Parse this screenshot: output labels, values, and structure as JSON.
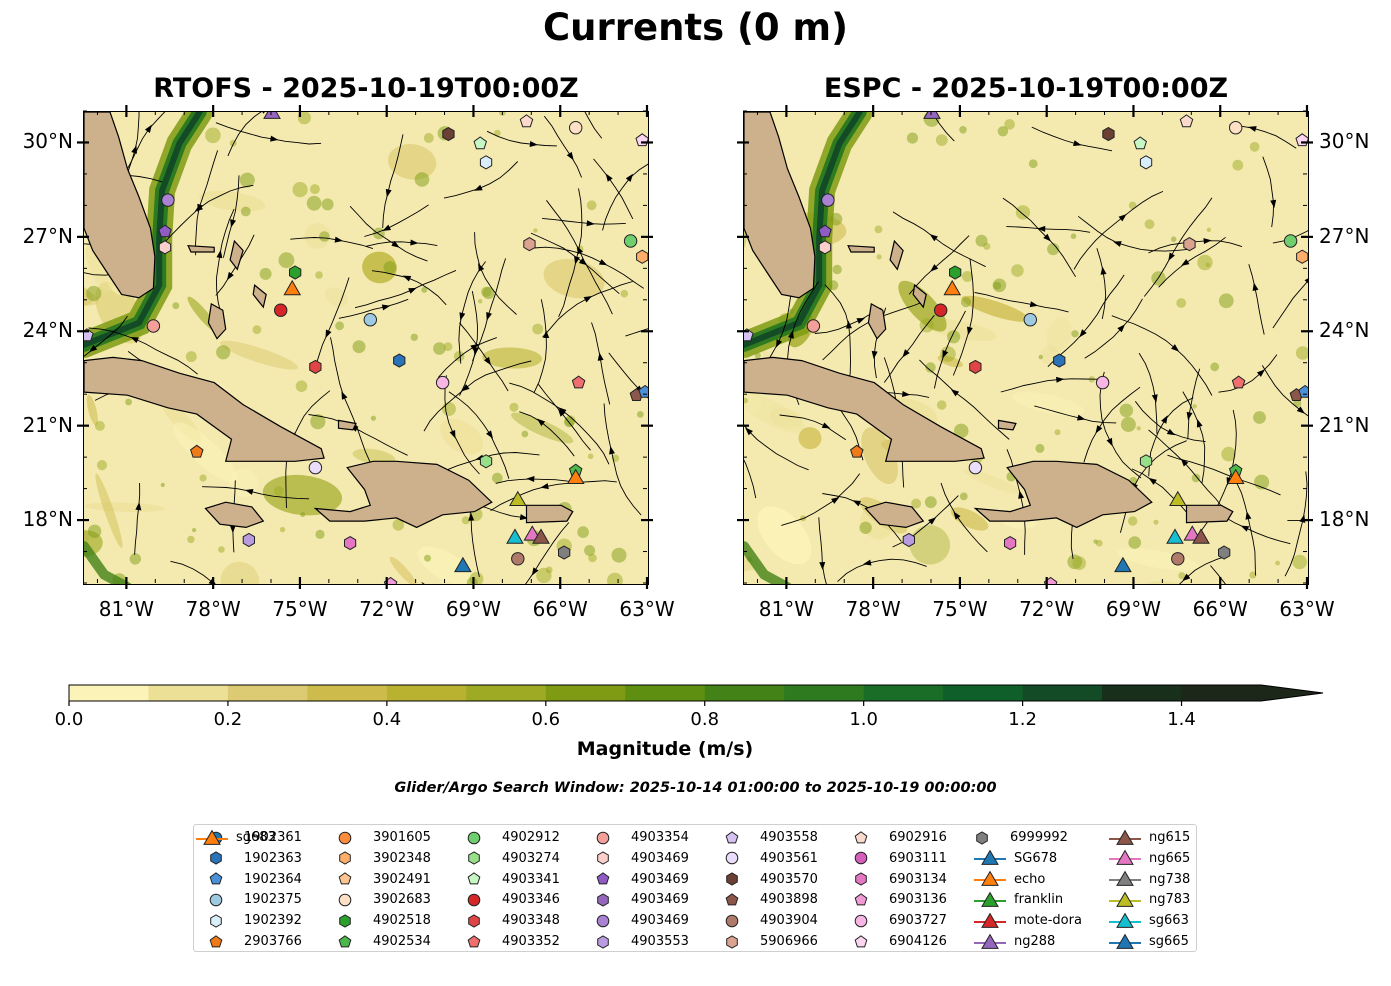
{
  "title": "Currents (0 m)",
  "panels": [
    {
      "id": "rtofs",
      "title": "RTOFS - 2025-10-19T00:00Z",
      "lat_labels_side": "left"
    },
    {
      "id": "espc",
      "title": "ESPC - 2025-10-19T00:00Z",
      "lat_labels_side": "right"
    }
  ],
  "map_extent": {
    "lon": [
      -82.5,
      -63.0
    ],
    "lat": [
      16.0,
      31.0
    ]
  },
  "lon_ticks": [
    -81,
    -78,
    -75,
    -72,
    -69,
    -66,
    -63
  ],
  "lon_tick_labels": [
    "81°W",
    "78°W",
    "75°W",
    "72°W",
    "69°W",
    "66°W",
    "63°W"
  ],
  "lat_ticks": [
    18,
    21,
    24,
    27,
    30
  ],
  "lat_tick_labels": [
    "18°N",
    "21°N",
    "24°N",
    "27°N",
    "30°N"
  ],
  "colorbar": {
    "label": "Magnitude (m/s)",
    "range": [
      0.0,
      1.5
    ],
    "extend": "max",
    "ticks": [
      0.0,
      0.2,
      0.4,
      0.6,
      0.8,
      1.0,
      1.2,
      1.4
    ],
    "tick_labels": [
      "0.0",
      "0.2",
      "0.4",
      "0.6",
      "0.8",
      "1.0",
      "1.2",
      "1.4"
    ],
    "colors": [
      "#fbf3b8",
      "#ecdf96",
      "#ddcb73",
      "#cdbb4c",
      "#b8b230",
      "#9ea924",
      "#7e9b13",
      "#5f8f10",
      "#438216",
      "#2e7a1f",
      "#1a6d27",
      "#0f5f2a",
      "#124b26",
      "#182f1c",
      "#1c271a"
    ]
  },
  "search_window": "Glider/Argo Search Window: 2025-10-14 01:00:00 to 2025-10-19 00:00:00",
  "legend": [
    {
      "label": "1902361",
      "marker": "circle",
      "color": "#1f77b4"
    },
    {
      "label": "1902363",
      "marker": "hexagon",
      "color": "#2a73b8"
    },
    {
      "label": "1902364",
      "marker": "pentagon",
      "color": "#4a90d9"
    },
    {
      "label": "1902375",
      "marker": "circle",
      "color": "#9ecae1"
    },
    {
      "label": "1902392",
      "marker": "hexagon",
      "color": "#d8eefa"
    },
    {
      "label": "2903766",
      "marker": "pentagon",
      "color": "#f07a1a"
    },
    {
      "label": "3901605",
      "marker": "circle",
      "color": "#fd8d3c"
    },
    {
      "label": "3902348",
      "marker": "hexagon",
      "color": "#fdae6b"
    },
    {
      "label": "3902491",
      "marker": "pentagon",
      "color": "#fdc58f"
    },
    {
      "label": "3902683",
      "marker": "circle",
      "color": "#fde0c5"
    },
    {
      "label": "4902518",
      "marker": "hexagon",
      "color": "#2ca02c"
    },
    {
      "label": "4902534",
      "marker": "pentagon",
      "color": "#4cb84c"
    },
    {
      "label": "4902912",
      "marker": "circle",
      "color": "#6fcf6f"
    },
    {
      "label": "4903274",
      "marker": "hexagon",
      "color": "#98df8a"
    },
    {
      "label": "4903341",
      "marker": "pentagon",
      "color": "#c7f7c4"
    },
    {
      "label": "4903346",
      "marker": "circle",
      "color": "#d62728"
    },
    {
      "label": "4903348",
      "marker": "hexagon",
      "color": "#e04545"
    },
    {
      "label": "4903352",
      "marker": "pentagon",
      "color": "#ef6e6e"
    },
    {
      "label": "4903354",
      "marker": "circle",
      "color": "#f4a09a"
    },
    {
      "label": "4903469",
      "marker": "hexagon",
      "color": "#fbd0cc"
    },
    {
      "label": "4903469",
      "marker": "pentagon",
      "color": "#8e5cc4"
    },
    {
      "label": "4903469",
      "marker": "hexagon",
      "color": "#9467bd"
    },
    {
      "label": "4903469",
      "marker": "circle",
      "color": "#a982d4"
    },
    {
      "label": "4903553",
      "marker": "hexagon",
      "color": "#b99be0"
    },
    {
      "label": "4903558",
      "marker": "pentagon",
      "color": "#d6c2f2"
    },
    {
      "label": "4903561",
      "marker": "circle",
      "color": "#eadcfb"
    },
    {
      "label": "4903570",
      "marker": "hexagon",
      "color": "#6b3f33"
    },
    {
      "label": "4903898",
      "marker": "pentagon",
      "color": "#8c564b"
    },
    {
      "label": "4903904",
      "marker": "circle",
      "color": "#b07a6b"
    },
    {
      "label": "5906966",
      "marker": "hexagon",
      "color": "#dba290"
    },
    {
      "label": "6902916",
      "marker": "pentagon",
      "color": "#fbd9cc"
    },
    {
      "label": "6903111",
      "marker": "circle",
      "color": "#d45fbd"
    },
    {
      "label": "6903134",
      "marker": "hexagon",
      "color": "#e377c2"
    },
    {
      "label": "6903136",
      "marker": "pentagon",
      "color": "#f09ad6"
    },
    {
      "label": "6903727",
      "marker": "circle",
      "color": "#f7b6e4"
    },
    {
      "label": "6904126",
      "marker": "pentagon",
      "color": "#fcd5f0"
    },
    {
      "label": "6999992",
      "marker": "hexagon",
      "color": "#7f7f7f"
    },
    {
      "label": "SG678",
      "marker": "triangle-line",
      "color": "#1f77b4"
    },
    {
      "label": "echo",
      "marker": "triangle-line",
      "color": "#ff7f0e"
    },
    {
      "label": "franklin",
      "marker": "triangle-line",
      "color": "#2ca02c"
    },
    {
      "label": "mote-dora",
      "marker": "triangle-line",
      "color": "#d62728"
    },
    {
      "label": "ng288",
      "marker": "triangle-line",
      "color": "#9467bd"
    },
    {
      "label": "ng615",
      "marker": "triangle-line",
      "color": "#8c564b"
    },
    {
      "label": "ng665",
      "marker": "triangle-line",
      "color": "#e377c2"
    },
    {
      "label": "ng738",
      "marker": "triangle-line",
      "color": "#7f7f7f"
    },
    {
      "label": "ng783",
      "marker": "triangle-line",
      "color": "#bcbd22"
    },
    {
      "label": "sg663",
      "marker": "triangle-line",
      "color": "#17becf"
    },
    {
      "label": "sg665",
      "marker": "triangle-line",
      "color": "#1f77b4"
    },
    {
      "label": "sg683",
      "marker": "triangle-line",
      "color": "#ff7f0e"
    }
  ],
  "argo_floats": [
    {
      "lon": -79.6,
      "lat": 28.2,
      "label": "4903469",
      "marker": "circle",
      "color": "#a982d4"
    },
    {
      "lon": -79.7,
      "lat": 27.2,
      "label": "4903469",
      "marker": "pentagon",
      "color": "#8e5cc4"
    },
    {
      "lon": -79.7,
      "lat": 26.7,
      "label": "4903469",
      "marker": "hexagon",
      "color": "#fbd0cc"
    },
    {
      "lon": -80.1,
      "lat": 24.2,
      "label": "4903354",
      "marker": "circle",
      "color": "#f4a09a"
    },
    {
      "lon": -82.4,
      "lat": 23.9,
      "label": "4903558",
      "marker": "pentagon",
      "color": "#d6c2f2"
    },
    {
      "lon": -75.2,
      "lat": 25.9,
      "label": "4902518",
      "marker": "hexagon",
      "color": "#2ca02c"
    },
    {
      "lon": -75.7,
      "lat": 24.7,
      "label": "4903346",
      "marker": "circle",
      "color": "#d62728"
    },
    {
      "lon": -74.5,
      "lat": 22.9,
      "label": "4903348",
      "marker": "hexagon",
      "color": "#e04545"
    },
    {
      "lon": -72.6,
      "lat": 24.4,
      "label": "1902375",
      "marker": "circle",
      "color": "#9ecae1"
    },
    {
      "lon": -71.6,
      "lat": 23.1,
      "label": "1902363",
      "marker": "hexagon",
      "color": "#2a73b8"
    },
    {
      "lon": -70.1,
      "lat": 22.4,
      "label": "6903727",
      "marker": "circle",
      "color": "#f7b6e4"
    },
    {
      "lon": -69.9,
      "lat": 30.3,
      "label": "4903570",
      "marker": "hexagon",
      "color": "#6b3f33"
    },
    {
      "lon": -68.8,
      "lat": 30.0,
      "label": "4903341",
      "marker": "pentagon",
      "color": "#c7f7c4"
    },
    {
      "lon": -68.6,
      "lat": 29.4,
      "label": "1902392",
      "marker": "hexagon",
      "color": "#d8eefa"
    },
    {
      "lon": -67.2,
      "lat": 30.7,
      "label": "6902916",
      "marker": "pentagon",
      "color": "#fbd9cc"
    },
    {
      "lon": -65.5,
      "lat": 30.5,
      "label": "3902683",
      "marker": "circle",
      "color": "#fde0c5"
    },
    {
      "lon": -63.2,
      "lat": 30.1,
      "label": "6904126",
      "marker": "pentagon",
      "color": "#fcd5f0"
    },
    {
      "lon": -67.1,
      "lat": 26.8,
      "label": "5906966",
      "marker": "hexagon",
      "color": "#dba290"
    },
    {
      "lon": -63.6,
      "lat": 26.9,
      "label": "4902912",
      "marker": "circle",
      "color": "#6fcf6f"
    },
    {
      "lon": -63.2,
      "lat": 26.4,
      "label": "3902348",
      "marker": "hexagon",
      "color": "#fdae6b"
    },
    {
      "lon": -65.4,
      "lat": 22.4,
      "label": "4903352",
      "marker": "pentagon",
      "color": "#ef6e6e"
    },
    {
      "lon": -63.4,
      "lat": 22.0,
      "label": "4903898",
      "marker": "pentagon",
      "color": "#8c564b"
    },
    {
      "lon": -63.1,
      "lat": 22.1,
      "label": "1902364",
      "marker": "pentagon",
      "color": "#4a90d9"
    },
    {
      "lon": -78.6,
      "lat": 20.2,
      "label": "2903766",
      "marker": "pentagon",
      "color": "#f07a1a"
    },
    {
      "lon": -74.5,
      "lat": 19.7,
      "label": "4903561",
      "marker": "circle",
      "color": "#eadcfb"
    },
    {
      "lon": -68.6,
      "lat": 19.9,
      "label": "4903274",
      "marker": "hexagon",
      "color": "#98df8a"
    },
    {
      "lon": -65.5,
      "lat": 19.6,
      "label": "4902534",
      "marker": "pentagon",
      "color": "#4cb84c"
    },
    {
      "lon": -76.8,
      "lat": 17.4,
      "label": "4903553",
      "marker": "hexagon",
      "color": "#b99be0"
    },
    {
      "lon": -73.3,
      "lat": 17.3,
      "label": "6903134",
      "marker": "hexagon",
      "color": "#e377c2"
    },
    {
      "lon": -71.9,
      "lat": 16.0,
      "label": "6903136",
      "marker": "pentagon",
      "color": "#f09ad6"
    },
    {
      "lon": -67.5,
      "lat": 16.8,
      "label": "4903904",
      "marker": "circle",
      "color": "#b07a6b"
    },
    {
      "lon": -65.9,
      "lat": 17.0,
      "label": "6999992",
      "marker": "hexagon",
      "color": "#7f7f7f"
    }
  ],
  "gliders": [
    {
      "label": "ng288",
      "lon": -76.0,
      "lat": 31.0,
      "color": "#9467bd"
    },
    {
      "label": "echo",
      "lon": -75.3,
      "lat": 25.4,
      "color": "#ff7f0e"
    },
    {
      "label": "ng783",
      "lon": -67.5,
      "lat": 18.7,
      "color": "#bcbd22"
    },
    {
      "label": "sg663",
      "lon": -67.6,
      "lat": 17.5,
      "color": "#17becf"
    },
    {
      "label": "ng665",
      "lon": -67.0,
      "lat": 17.6,
      "color": "#e377c2"
    },
    {
      "label": "ng615",
      "lon": -66.7,
      "lat": 17.5,
      "color": "#8c564b"
    },
    {
      "label": "sg683",
      "lon": -65.5,
      "lat": 19.4,
      "color": "#ff7f0e"
    },
    {
      "label": "sg665",
      "lon": -69.4,
      "lat": 16.6,
      "color": "#1f77b4"
    }
  ]
}
